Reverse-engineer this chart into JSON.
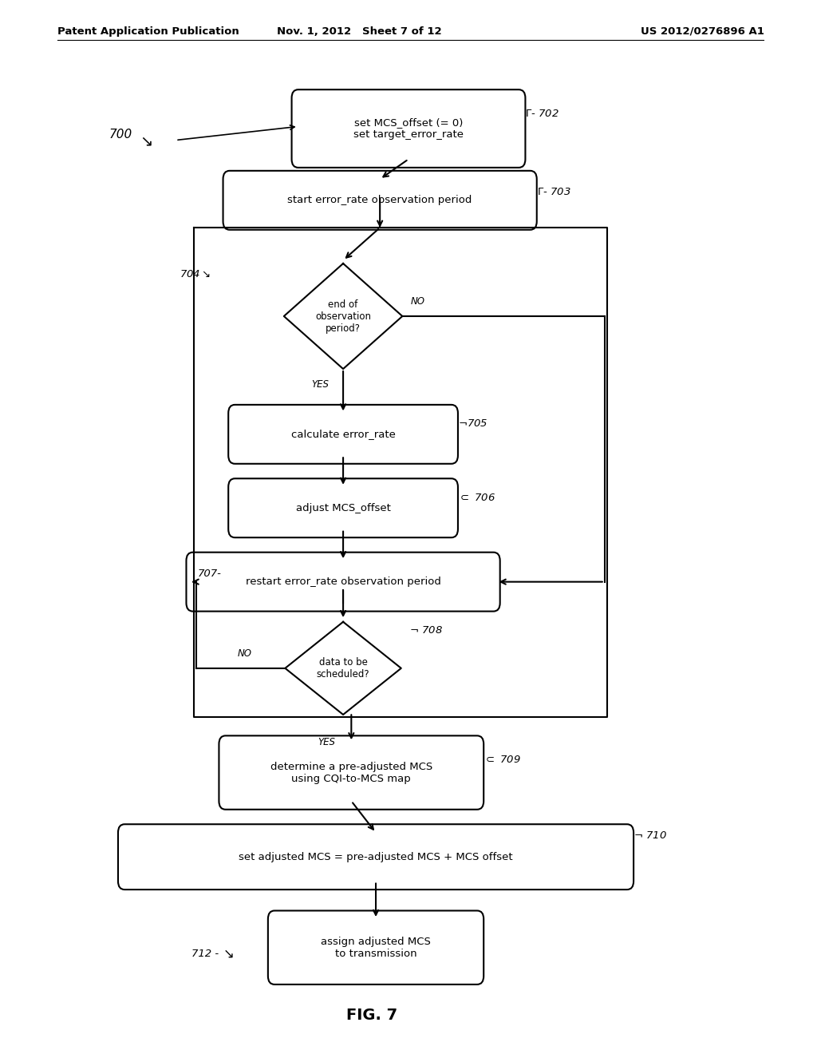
{
  "bg_color": "#ffffff",
  "header_left": "Patent Application Publication",
  "header_mid": "Nov. 1, 2012   Sheet 7 of 12",
  "header_right": "US 2012/0276896 A1",
  "fig_caption": "FIG. 7",
  "node_702_text": "set MCS_offset (= 0)\nset target_error_rate",
  "node_703_text": "start error_rate observation period",
  "node_704_text": "end of\nobservation\nperiod?",
  "node_705_text": "calculate error_rate",
  "node_706_text": "adjust MCS_offset",
  "node_707_text": "restart error_rate observation period",
  "node_708_text": "data to be\nscheduled?",
  "node_709_text": "determine a pre-adjusted MCS\nusing CQI-to-MCS map",
  "node_710_text": "set adjusted MCS = pre-adjusted MCS + MCS offset",
  "node_712_text": "assign adjusted MCS\nto transmission",
  "lw": 1.5,
  "fs": 9.5,
  "fs_sm": 8.5
}
